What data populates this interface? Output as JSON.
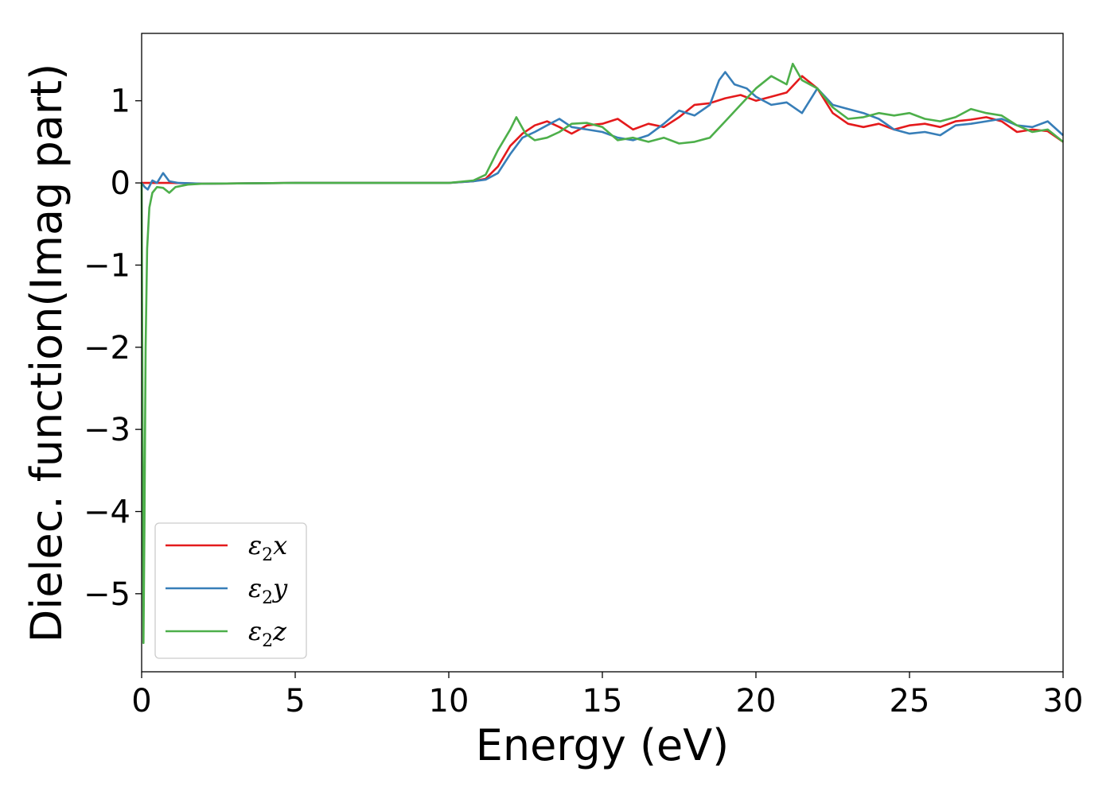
{
  "chart_data": {
    "type": "line",
    "title": "",
    "xlabel": "Energy (eV)",
    "ylabel": "Dielec. function(Imag part)",
    "xlim": [
      0,
      30
    ],
    "ylim": [
      -5.95,
      1.82
    ],
    "xticks": [
      0,
      5,
      10,
      15,
      20,
      25,
      30
    ],
    "yticks": [
      -5,
      -4,
      -3,
      -2,
      -1,
      0,
      1
    ],
    "xtick_labels": [
      "0",
      "5",
      "10",
      "15",
      "20",
      "25",
      "30"
    ],
    "ytick_labels": [
      "−5",
      "−4",
      "−3",
      "−2",
      "−1",
      "0",
      "1"
    ],
    "grid": false,
    "legend_position": "lower-left",
    "series": [
      {
        "name": "ε2x",
        "legend": {
          "symbol": "ε",
          "sub": "2",
          "var": "x"
        },
        "color": "#e41a1c",
        "points": [
          [
            0,
            0
          ],
          [
            0.5,
            0
          ],
          [
            1,
            0
          ],
          [
            2,
            -0.01
          ],
          [
            5,
            0
          ],
          [
            10,
            0
          ],
          [
            10.8,
            0.02
          ],
          [
            11.2,
            0.05
          ],
          [
            11.6,
            0.2
          ],
          [
            12,
            0.45
          ],
          [
            12.4,
            0.6
          ],
          [
            12.8,
            0.7
          ],
          [
            13.2,
            0.75
          ],
          [
            13.6,
            0.68
          ],
          [
            14,
            0.6
          ],
          [
            14.5,
            0.7
          ],
          [
            15,
            0.72
          ],
          [
            15.5,
            0.78
          ],
          [
            16,
            0.65
          ],
          [
            16.5,
            0.72
          ],
          [
            17,
            0.68
          ],
          [
            17.5,
            0.8
          ],
          [
            18,
            0.95
          ],
          [
            18.5,
            0.97
          ],
          [
            19,
            1.03
          ],
          [
            19.5,
            1.07
          ],
          [
            20,
            1.0
          ],
          [
            20.5,
            1.05
          ],
          [
            21,
            1.1
          ],
          [
            21.5,
            1.3
          ],
          [
            22,
            1.15
          ],
          [
            22.5,
            0.85
          ],
          [
            23,
            0.72
          ],
          [
            23.5,
            0.68
          ],
          [
            24,
            0.72
          ],
          [
            24.5,
            0.65
          ],
          [
            25,
            0.7
          ],
          [
            25.5,
            0.72
          ],
          [
            26,
            0.68
          ],
          [
            26.5,
            0.75
          ],
          [
            27,
            0.77
          ],
          [
            27.5,
            0.8
          ],
          [
            28,
            0.75
          ],
          [
            28.5,
            0.62
          ],
          [
            29,
            0.65
          ],
          [
            29.5,
            0.63
          ],
          [
            30,
            0.5
          ]
        ]
      },
      {
        "name": "ε2y",
        "legend": {
          "symbol": "ε",
          "sub": "2",
          "var": "y"
        },
        "color": "#377eb8",
        "points": [
          [
            0,
            0
          ],
          [
            0.1,
            -0.05
          ],
          [
            0.2,
            -0.08
          ],
          [
            0.35,
            0.03
          ],
          [
            0.5,
            0
          ],
          [
            0.7,
            0.12
          ],
          [
            0.9,
            0.02
          ],
          [
            1.2,
            0
          ],
          [
            2,
            -0.01
          ],
          [
            5,
            0
          ],
          [
            10,
            0
          ],
          [
            10.8,
            0.02
          ],
          [
            11.2,
            0.04
          ],
          [
            11.6,
            0.12
          ],
          [
            12,
            0.35
          ],
          [
            12.4,
            0.55
          ],
          [
            12.8,
            0.62
          ],
          [
            13.2,
            0.7
          ],
          [
            13.6,
            0.78
          ],
          [
            14,
            0.68
          ],
          [
            14.5,
            0.65
          ],
          [
            15,
            0.62
          ],
          [
            15.5,
            0.55
          ],
          [
            16,
            0.52
          ],
          [
            16.5,
            0.58
          ],
          [
            17,
            0.72
          ],
          [
            17.5,
            0.88
          ],
          [
            18,
            0.82
          ],
          [
            18.5,
            0.95
          ],
          [
            18.8,
            1.25
          ],
          [
            19,
            1.35
          ],
          [
            19.3,
            1.2
          ],
          [
            19.7,
            1.15
          ],
          [
            20,
            1.05
          ],
          [
            20.5,
            0.95
          ],
          [
            21,
            0.98
          ],
          [
            21.5,
            0.85
          ],
          [
            22,
            1.15
          ],
          [
            22.5,
            0.95
          ],
          [
            23,
            0.9
          ],
          [
            23.5,
            0.85
          ],
          [
            24,
            0.78
          ],
          [
            24.5,
            0.65
          ],
          [
            25,
            0.6
          ],
          [
            25.5,
            0.62
          ],
          [
            26,
            0.58
          ],
          [
            26.5,
            0.7
          ],
          [
            27,
            0.72
          ],
          [
            27.5,
            0.75
          ],
          [
            28,
            0.78
          ],
          [
            28.5,
            0.7
          ],
          [
            29,
            0.68
          ],
          [
            29.5,
            0.75
          ],
          [
            30,
            0.58
          ]
        ]
      },
      {
        "name": "ε2z",
        "legend": {
          "symbol": "ε",
          "sub": "2",
          "var": "z"
        },
        "color": "#4daf4a",
        "points": [
          [
            0,
            0
          ],
          [
            0.02,
            -2.0
          ],
          [
            0.06,
            -5.6
          ],
          [
            0.09,
            -4.2
          ],
          [
            0.13,
            -2.0
          ],
          [
            0.18,
            -0.8
          ],
          [
            0.25,
            -0.3
          ],
          [
            0.35,
            -0.12
          ],
          [
            0.5,
            -0.05
          ],
          [
            0.7,
            -0.06
          ],
          [
            0.9,
            -0.12
          ],
          [
            1.1,
            -0.05
          ],
          [
            1.5,
            -0.02
          ],
          [
            2,
            -0.01
          ],
          [
            5,
            0
          ],
          [
            10,
            0
          ],
          [
            10.8,
            0.03
          ],
          [
            11.2,
            0.1
          ],
          [
            11.6,
            0.4
          ],
          [
            12,
            0.65
          ],
          [
            12.2,
            0.8
          ],
          [
            12.5,
            0.6
          ],
          [
            12.8,
            0.52
          ],
          [
            13.2,
            0.55
          ],
          [
            13.6,
            0.62
          ],
          [
            14,
            0.72
          ],
          [
            14.5,
            0.73
          ],
          [
            15,
            0.68
          ],
          [
            15.5,
            0.52
          ],
          [
            16,
            0.55
          ],
          [
            16.5,
            0.5
          ],
          [
            17,
            0.55
          ],
          [
            17.5,
            0.48
          ],
          [
            18,
            0.5
          ],
          [
            18.5,
            0.55
          ],
          [
            19,
            0.75
          ],
          [
            19.5,
            0.95
          ],
          [
            20,
            1.15
          ],
          [
            20.5,
            1.3
          ],
          [
            21,
            1.2
          ],
          [
            21.2,
            1.45
          ],
          [
            21.5,
            1.25
          ],
          [
            22,
            1.15
          ],
          [
            22.5,
            0.92
          ],
          [
            23,
            0.78
          ],
          [
            23.5,
            0.8
          ],
          [
            24,
            0.85
          ],
          [
            24.5,
            0.82
          ],
          [
            25,
            0.85
          ],
          [
            25.5,
            0.78
          ],
          [
            26,
            0.75
          ],
          [
            26.5,
            0.8
          ],
          [
            27,
            0.9
          ],
          [
            27.5,
            0.85
          ],
          [
            28,
            0.82
          ],
          [
            28.5,
            0.7
          ],
          [
            29,
            0.62
          ],
          [
            29.5,
            0.65
          ],
          [
            30,
            0.5
          ]
        ]
      }
    ]
  }
}
